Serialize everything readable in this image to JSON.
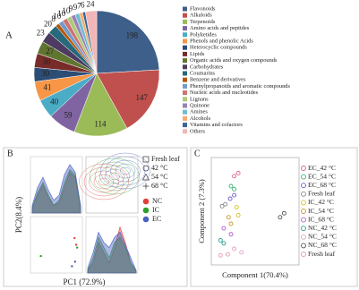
{
  "chart_data": [
    {
      "type": "pie",
      "panel_label": "A",
      "categories": [
        "Flavonoids",
        "Alkaloids",
        "Terpenoids",
        "Amino acids and peptides",
        "Polyketides",
        "Phenols and phenolic Acids",
        "Heterocyclic compounds",
        "Lipids",
        "Organic acids and oxygen compounds",
        "Carbohydrates",
        "Coumarins",
        "Benzene and derivatives",
        "Phenylpropanoids and aromatic compounds",
        "Nucleic acids and nucleotides",
        "Lignans",
        "Quinone",
        "Amines",
        "Alcohols",
        "Vitamins and cofactors",
        "Others"
      ],
      "values": [
        198,
        147,
        114,
        59,
        40,
        41,
        30,
        30,
        27,
        23,
        20,
        8,
        10,
        10,
        10,
        9,
        9,
        7,
        6,
        24
      ],
      "colors": [
        "#3e5f8a",
        "#c0504d",
        "#9bbb59",
        "#8064a2",
        "#4bacc6",
        "#f79646",
        "#2c4d75",
        "#772c2a",
        "#5f7530",
        "#4d3b62",
        "#276a7c",
        "#b65708",
        "#729aca",
        "#cd7371",
        "#afc97a",
        "#9983b5",
        "#6fbdd1",
        "#f9ab6b",
        "#3a6698",
        "#f2b6b6"
      ]
    },
    {
      "type": "pairplot",
      "panel_label": "B",
      "xlabel": "PC1 (72.9%)",
      "ylabel": "PC2(8.4%)",
      "shape_legend": [
        "Fresh leaf",
        "42 °C",
        "54 °C",
        "68 °C"
      ],
      "groups": [
        {
          "name": "NC",
          "color": "#e0403a",
          "density_pc1": [
            0.1,
            0.35,
            0.55,
            0.3,
            0.15,
            0.2,
            0.5,
            0.8,
            0.7,
            0.1
          ],
          "density_pc2": [
            0.05,
            0.2,
            0.6,
            0.4,
            0.2,
            0.5,
            0.9,
            0.6,
            0.2,
            0.05
          ],
          "x": [
            0.85,
            0.88
          ],
          "y": [
            0.62,
            0.5
          ]
        },
        {
          "name": "IC",
          "color": "#2ca02c",
          "density_pc1": [
            0.1,
            0.4,
            0.6,
            0.35,
            0.15,
            0.25,
            0.6,
            0.85,
            0.75,
            0.1
          ],
          "density_pc2": [
            0.05,
            0.3,
            0.7,
            0.5,
            0.3,
            0.6,
            0.7,
            0.5,
            0.2,
            0.05
          ],
          "x": [
            0.9,
            0.2
          ],
          "y": [
            0.45,
            0.3
          ]
        },
        {
          "name": "EC",
          "color": "#4a5fc1",
          "density_pc1": [
            0.15,
            0.5,
            0.7,
            0.45,
            0.25,
            0.35,
            0.75,
            0.95,
            0.8,
            0.15
          ],
          "density_pc2": [
            0.1,
            0.4,
            0.8,
            0.6,
            0.5,
            0.7,
            0.8,
            0.55,
            0.3,
            0.05
          ],
          "x": [
            0.86,
            0.8
          ],
          "y": [
            0.2,
            0.12
          ]
        }
      ]
    },
    {
      "type": "scatter",
      "panel_label": "C",
      "xlabel": "Component 1(70.4%)",
      "ylabel": "Component 2 (7.3%)",
      "xlim": [
        0,
        10
      ],
      "ylim": [
        0,
        10
      ],
      "series": [
        {
          "name": "EC_42 °C",
          "color": "#e05a8a",
          "x": [
            2.4,
            2.9
          ],
          "y": [
            8.5,
            8.8
          ]
        },
        {
          "name": "EC_54 °C",
          "color": "#3cb371",
          "x": [
            2.0,
            2.4
          ],
          "y": [
            7.5,
            7.2
          ]
        },
        {
          "name": "EC_68 °C",
          "color": "#6a5acd",
          "x": [
            1.9,
            2.4
          ],
          "y": [
            6.25,
            6.6
          ]
        },
        {
          "name": "Fresh leaf",
          "color": "#888888",
          "x": [
            0.9,
            1.3
          ],
          "y": [
            5.5,
            5.7
          ]
        },
        {
          "name": "IC_42 °C",
          "color": "#d4c21a",
          "x": [
            2.7,
            2.9
          ],
          "y": [
            5.4,
            4.6
          ]
        },
        {
          "name": "IC_54 °C",
          "color": "#c89a2a",
          "x": [
            1.7,
            2.0
          ],
          "y": [
            4.4,
            3.75
          ]
        },
        {
          "name": "IC_68 °C",
          "color": "#b05ad0",
          "x": [
            1.1,
            2.0
          ],
          "y": [
            3.3,
            2.7
          ]
        },
        {
          "name": "NC_42 °C",
          "color": "#2a9d8f",
          "x": [
            0.7,
            1.1
          ],
          "y": [
            2.1,
            1.8
          ]
        },
        {
          "name": "NC_54 °C",
          "color": "#e0a0c8",
          "x": [
            2.4,
            3.3
          ],
          "y": [
            1.25,
            0.9
          ]
        },
        {
          "name": "NC_68 °C",
          "color": "#555555",
          "x": [
            8.1,
            8.6
          ],
          "y": [
            4.4,
            4.8
          ]
        },
        {
          "name": "Fresh leaf",
          "color": "#e89ab0",
          "x": [
            0.7,
            1.6
          ],
          "y": [
            0.6,
            0.7
          ]
        }
      ]
    }
  ]
}
